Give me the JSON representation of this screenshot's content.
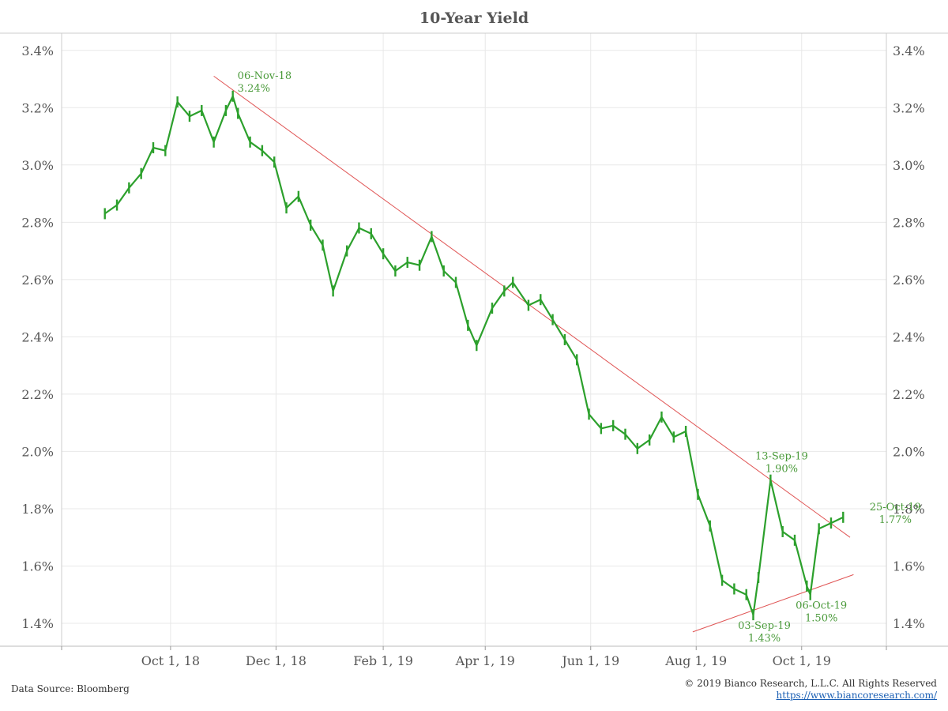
{
  "chart_data": {
    "type": "line",
    "title": "10-Year Yield",
    "xlabel": "",
    "ylabel": "",
    "x_ticks": [
      "Oct 1, 18",
      "Dec 1, 18",
      "Feb 1, 19",
      "Apr 1, 19",
      "Jun 1, 19",
      "Aug 1, 19",
      "Oct 1, 19"
    ],
    "y_ticks_left": [
      "3.4%",
      "3.2%",
      "3.0%",
      "2.8%",
      "2.6%",
      "2.4%",
      "2.2%",
      "2.0%",
      "1.8%",
      "1.6%",
      "1.4%"
    ],
    "y_ticks_right": [
      "3.4%",
      "3.2%",
      "3.0%",
      "2.8%",
      "2.6%",
      "2.4%",
      "2.2%",
      "2.0%",
      "1.8%",
      "1.6%",
      "1.4%"
    ],
    "ylim": [
      1.32,
      3.46
    ],
    "xlim": [
      "2018-07-30",
      "2019-11-19"
    ],
    "grid": true,
    "colors": {
      "series": "#2ca02c",
      "trendline": "#e05555",
      "annotation": "#4a9a3a",
      "grid": "#e8e8e8"
    },
    "series": [
      {
        "values": [
          [
            "2018-08-24",
            2.83
          ],
          [
            "2018-08-31",
            2.86
          ],
          [
            "2018-09-07",
            2.92
          ],
          [
            "2018-09-14",
            2.97
          ],
          [
            "2018-09-21",
            3.06
          ],
          [
            "2018-09-28",
            3.05
          ],
          [
            "2018-10-05",
            3.22
          ],
          [
            "2018-10-12",
            3.17
          ],
          [
            "2018-10-19",
            3.19
          ],
          [
            "2018-10-26",
            3.08
          ],
          [
            "2018-11-02",
            3.19
          ],
          [
            "2018-11-06",
            3.24
          ],
          [
            "2018-11-09",
            3.18
          ],
          [
            "2018-11-16",
            3.08
          ],
          [
            "2018-11-23",
            3.05
          ],
          [
            "2018-11-30",
            3.01
          ],
          [
            "2018-12-07",
            2.85
          ],
          [
            "2018-12-14",
            2.89
          ],
          [
            "2018-12-21",
            2.79
          ],
          [
            "2018-12-28",
            2.72
          ],
          [
            "2019-01-03",
            2.56
          ],
          [
            "2019-01-11",
            2.7
          ],
          [
            "2019-01-18",
            2.78
          ],
          [
            "2019-01-25",
            2.76
          ],
          [
            "2019-02-01",
            2.69
          ],
          [
            "2019-02-08",
            2.63
          ],
          [
            "2019-02-15",
            2.66
          ],
          [
            "2019-02-22",
            2.65
          ],
          [
            "2019-03-01",
            2.75
          ],
          [
            "2019-03-08",
            2.63
          ],
          [
            "2019-03-15",
            2.59
          ],
          [
            "2019-03-22",
            2.44
          ],
          [
            "2019-03-27",
            2.37
          ],
          [
            "2019-04-05",
            2.5
          ],
          [
            "2019-04-12",
            2.56
          ],
          [
            "2019-04-17",
            2.59
          ],
          [
            "2019-04-26",
            2.51
          ],
          [
            "2019-05-03",
            2.53
          ],
          [
            "2019-05-10",
            2.46
          ],
          [
            "2019-05-17",
            2.39
          ],
          [
            "2019-05-24",
            2.32
          ],
          [
            "2019-05-31",
            2.13
          ],
          [
            "2019-06-07",
            2.08
          ],
          [
            "2019-06-14",
            2.09
          ],
          [
            "2019-06-21",
            2.06
          ],
          [
            "2019-06-28",
            2.01
          ],
          [
            "2019-07-05",
            2.04
          ],
          [
            "2019-07-12",
            2.12
          ],
          [
            "2019-07-19",
            2.05
          ],
          [
            "2019-07-26",
            2.07
          ],
          [
            "2019-08-02",
            1.85
          ],
          [
            "2019-08-09",
            1.74
          ],
          [
            "2019-08-16",
            1.55
          ],
          [
            "2019-08-23",
            1.52
          ],
          [
            "2019-08-30",
            1.5
          ],
          [
            "2019-09-03",
            1.43
          ],
          [
            "2019-09-06",
            1.56
          ],
          [
            "2019-09-13",
            1.9
          ],
          [
            "2019-09-20",
            1.72
          ],
          [
            "2019-09-27",
            1.69
          ],
          [
            "2019-10-04",
            1.53
          ],
          [
            "2019-10-06",
            1.5
          ],
          [
            "2019-10-11",
            1.73
          ],
          [
            "2019-10-18",
            1.75
          ],
          [
            "2019-10-25",
            1.77
          ]
        ]
      }
    ],
    "trendlines": [
      {
        "from": [
          "2018-10-26",
          3.31
        ],
        "to": [
          "2019-10-29",
          1.7
        ]
      },
      {
        "from": [
          "2019-07-30",
          1.37
        ],
        "to": [
          "2019-10-31",
          1.57
        ]
      }
    ],
    "annotations": [
      {
        "date_label": "06-Nov-18",
        "value_label": "3.24%",
        "at": [
          "2018-11-06",
          3.24
        ],
        "anchor": "right-above"
      },
      {
        "date_label": "13-Sep-19",
        "value_label": "1.90%",
        "at": [
          "2019-09-13",
          1.9
        ],
        "anchor": "above"
      },
      {
        "date_label": "25-Oct-19",
        "value_label": "1.77%",
        "at": [
          "2019-10-25",
          1.77
        ],
        "anchor": "right"
      },
      {
        "date_label": "03-Sep-19",
        "value_label": "1.43%",
        "at": [
          "2019-09-03",
          1.43
        ],
        "anchor": "below"
      },
      {
        "date_label": "06-Oct-19",
        "value_label": "1.50%",
        "at": [
          "2019-10-06",
          1.5
        ],
        "anchor": "below"
      }
    ]
  },
  "footer": {
    "source": "Data Source: Bloomberg",
    "copyright": "© 2019 Bianco Research, L.L.C. All Rights Reserved",
    "link": "https://www.biancoresearch.com/"
  }
}
